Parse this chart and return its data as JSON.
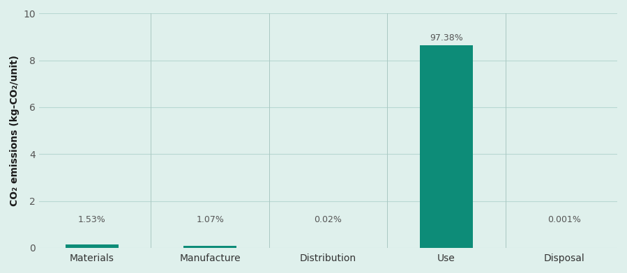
{
  "categories": [
    "Materials",
    "Manufacture",
    "Distribution",
    "Use",
    "Disposal"
  ],
  "values": [
    0.136,
    0.095,
    0.00177,
    8.635,
    8.86e-05
  ],
  "percentages": [
    "1.53%",
    "1.07%",
    "0.02%",
    "97.38%",
    "0.001%"
  ],
  "bar_color": "#0d8c78",
  "ylim": [
    0,
    10
  ],
  "yticks": [
    0,
    2,
    4,
    6,
    8,
    10
  ],
  "ylabel": "CO₂ emissions (kg-CO₂/unit)",
  "background_color": "#dff0ec",
  "grid_color": "#b8d8d2",
  "separator_color": "#aac8c2",
  "bar_width": 0.45,
  "figsize": [
    8.99,
    3.92
  ],
  "dpi": 100,
  "pct_label_color": "#555555",
  "pct_label_fontsize": 9,
  "tick_label_fontsize": 10,
  "ylabel_fontsize": 10
}
